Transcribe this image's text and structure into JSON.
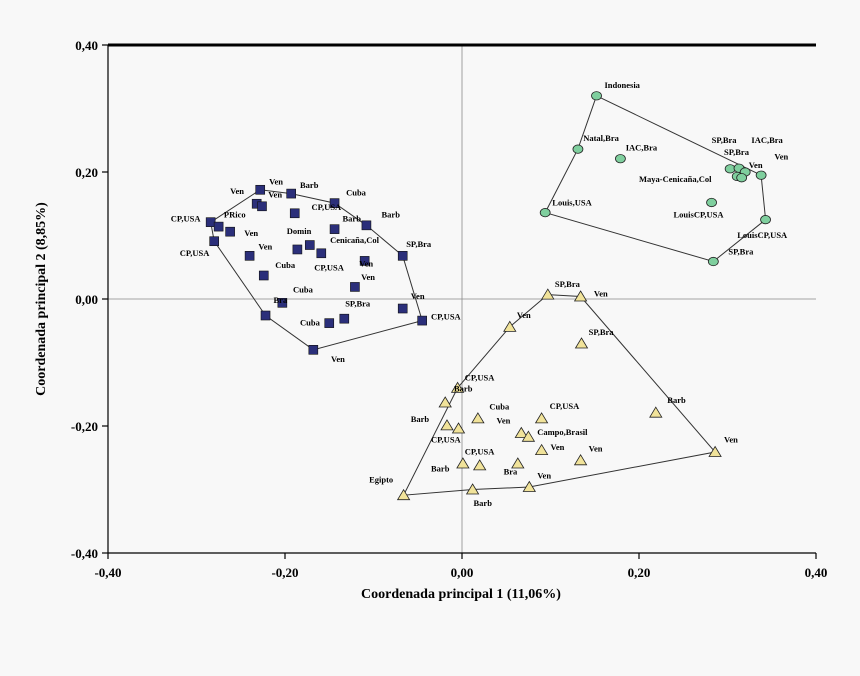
{
  "chart_data": {
    "type": "scatter",
    "xlabel": "Coordenada principal 1 (11,06%)",
    "ylabel": "Coordenada principal 2 (8,85%)",
    "xlim": [
      -0.4,
      0.4
    ],
    "ylim": [
      -0.4,
      0.4
    ],
    "xticks": [
      "-0,40",
      "-0,20",
      "0,00",
      "0,20",
      "0,40"
    ],
    "yticks": [
      "-0,40",
      "-0,20",
      "0,00",
      "0,20",
      "0,40"
    ],
    "reference_lines": {
      "x": 0,
      "y": 0
    },
    "colors": {
      "squares": "#2b2f7a",
      "circles": "#7fcf9e",
      "triangles": "#f1e39a",
      "hull": "#333333"
    },
    "groups": [
      {
        "marker": "square",
        "color": "#2b2f7a",
        "points": [
          {
            "x": -0.284,
            "y": 0.121
          },
          {
            "x": -0.275,
            "y": 0.114
          },
          {
            "x": -0.28,
            "y": 0.091
          },
          {
            "x": -0.262,
            "y": 0.106
          },
          {
            "x": -0.232,
            "y": 0.15
          },
          {
            "x": -0.226,
            "y": 0.146
          },
          {
            "x": -0.228,
            "y": 0.172
          },
          {
            "x": -0.193,
            "y": 0.166
          },
          {
            "x": -0.189,
            "y": 0.135
          },
          {
            "x": -0.144,
            "y": 0.151
          },
          {
            "x": -0.108,
            "y": 0.116
          },
          {
            "x": -0.144,
            "y": 0.11
          },
          {
            "x": -0.172,
            "y": 0.085
          },
          {
            "x": -0.186,
            "y": 0.078
          },
          {
            "x": -0.159,
            "y": 0.072
          },
          {
            "x": -0.24,
            "y": 0.068
          },
          {
            "x": -0.224,
            "y": 0.037
          },
          {
            "x": -0.11,
            "y": 0.06
          },
          {
            "x": -0.067,
            "y": 0.068
          },
          {
            "x": -0.121,
            "y": 0.019
          },
          {
            "x": -0.203,
            "y": -0.006
          },
          {
            "x": -0.222,
            "y": -0.026
          },
          {
            "x": -0.15,
            "y": -0.038
          },
          {
            "x": -0.133,
            "y": -0.031
          },
          {
            "x": -0.067,
            "y": -0.015
          },
          {
            "x": -0.045,
            "y": -0.034
          },
          {
            "x": -0.168,
            "y": -0.08
          }
        ],
        "labels": [
          {
            "text": "Ven",
            "x": -0.262,
            "y": 0.165
          },
          {
            "text": "Ven",
            "x": -0.218,
            "y": 0.18
          },
          {
            "text": "Ven",
            "x": -0.219,
            "y": 0.16
          },
          {
            "text": "Barb",
            "x": -0.183,
            "y": 0.175
          },
          {
            "text": "Cuba",
            "x": -0.131,
            "y": 0.163
          },
          {
            "text": "CP,USA",
            "x": -0.329,
            "y": 0.122
          },
          {
            "text": "PRico",
            "x": -0.269,
            "y": 0.128
          },
          {
            "text": "CP,USA",
            "x": -0.17,
            "y": 0.14
          },
          {
            "text": "Barb",
            "x": -0.091,
            "y": 0.128
          },
          {
            "text": "Barb",
            "x": -0.135,
            "y": 0.122
          },
          {
            "text": "Ven",
            "x": -0.246,
            "y": 0.099
          },
          {
            "text": "CP,USA",
            "x": -0.319,
            "y": 0.068
          },
          {
            "text": "Domin",
            "x": -0.198,
            "y": 0.102
          },
          {
            "text": "Ven",
            "x": -0.23,
            "y": 0.078
          },
          {
            "text": "Cenicaña,Col",
            "x": -0.149,
            "y": 0.088
          },
          {
            "text": "SP,Bra",
            "x": -0.063,
            "y": 0.082
          },
          {
            "text": "Cuba",
            "x": -0.211,
            "y": 0.049
          },
          {
            "text": "CP,USA",
            "x": -0.167,
            "y": 0.045
          },
          {
            "text": "Ven",
            "x": -0.116,
            "y": 0.051
          },
          {
            "text": "Ven",
            "x": -0.114,
            "y": 0.03
          },
          {
            "text": "Cuba",
            "x": -0.191,
            "y": 0.01
          },
          {
            "text": "Bra",
            "x": -0.213,
            "y": -0.006
          },
          {
            "text": "Cuba",
            "x": -0.183,
            "y": -0.042
          },
          {
            "text": "SP,Bra",
            "x": -0.132,
            "y": -0.012
          },
          {
            "text": "Ven",
            "x": -0.058,
            "y": 0.0
          },
          {
            "text": "CP,USA",
            "x": -0.035,
            "y": -0.032
          },
          {
            "text": "Ven",
            "x": -0.148,
            "y": -0.099
          }
        ],
        "hull": [
          [
            -0.284,
            0.121
          ],
          [
            -0.228,
            0.172
          ],
          [
            -0.193,
            0.166
          ],
          [
            -0.144,
            0.151
          ],
          [
            -0.108,
            0.116
          ],
          [
            -0.067,
            0.068
          ],
          [
            -0.045,
            -0.034
          ],
          [
            -0.168,
            -0.08
          ],
          [
            -0.222,
            -0.026
          ],
          [
            -0.28,
            0.091
          ]
        ]
      },
      {
        "marker": "circle",
        "color": "#7fcf9e",
        "points": [
          {
            "x": 0.152,
            "y": 0.32
          },
          {
            "x": 0.131,
            "y": 0.236
          },
          {
            "x": 0.179,
            "y": 0.221
          },
          {
            "x": 0.094,
            "y": 0.136
          },
          {
            "x": 0.303,
            "y": 0.205
          },
          {
            "x": 0.313,
            "y": 0.206
          },
          {
            "x": 0.32,
            "y": 0.2
          },
          {
            "x": 0.311,
            "y": 0.193
          },
          {
            "x": 0.316,
            "y": 0.191
          },
          {
            "x": 0.338,
            "y": 0.195
          },
          {
            "x": 0.282,
            "y": 0.152
          },
          {
            "x": 0.343,
            "y": 0.125
          },
          {
            "x": 0.284,
            "y": 0.059
          }
        ],
        "labels": [
          {
            "text": "Indonesia",
            "x": 0.161,
            "y": 0.332
          },
          {
            "text": "Natal,Bra",
            "x": 0.137,
            "y": 0.249
          },
          {
            "text": "IAC,Bra",
            "x": 0.185,
            "y": 0.234
          },
          {
            "text": "SP,Bra",
            "x": 0.282,
            "y": 0.246
          },
          {
            "text": "IAC,Bra",
            "x": 0.327,
            "y": 0.246
          },
          {
            "text": "SP,Bra",
            "x": 0.296,
            "y": 0.227
          },
          {
            "text": "Ven",
            "x": 0.353,
            "y": 0.22
          },
          {
            "text": "Ven",
            "x": 0.324,
            "y": 0.206
          },
          {
            "text": "Maya-Cenicaña,Col",
            "x": 0.2,
            "y": 0.184
          },
          {
            "text": "Louis,USA",
            "x": 0.102,
            "y": 0.147
          },
          {
            "text": "LouisCP,USA",
            "x": 0.239,
            "y": 0.128
          },
          {
            "text": "LouisCP,USA",
            "x": 0.311,
            "y": 0.096
          },
          {
            "text": "SP,Bra",
            "x": 0.301,
            "y": 0.07
          }
        ],
        "hull": [
          [
            0.152,
            0.32
          ],
          [
            0.338,
            0.195
          ],
          [
            0.343,
            0.125
          ],
          [
            0.284,
            0.059
          ],
          [
            0.094,
            0.136
          ],
          [
            0.131,
            0.236
          ]
        ]
      },
      {
        "marker": "triangle",
        "color": "#f1e39a",
        "points": [
          {
            "x": 0.097,
            "y": 0.007
          },
          {
            "x": 0.134,
            "y": 0.004
          },
          {
            "x": 0.054,
            "y": -0.044
          },
          {
            "x": 0.135,
            "y": -0.07
          },
          {
            "x": -0.005,
            "y": -0.14
          },
          {
            "x": -0.019,
            "y": -0.163
          },
          {
            "x": 0.018,
            "y": -0.188
          },
          {
            "x": 0.09,
            "y": -0.188
          },
          {
            "x": 0.219,
            "y": -0.179
          },
          {
            "x": -0.017,
            "y": -0.199
          },
          {
            "x": -0.004,
            "y": -0.204
          },
          {
            "x": 0.067,
            "y": -0.211
          },
          {
            "x": 0.075,
            "y": -0.217
          },
          {
            "x": 0.09,
            "y": -0.238
          },
          {
            "x": 0.134,
            "y": -0.254
          },
          {
            "x": 0.286,
            "y": -0.241
          },
          {
            "x": 0.001,
            "y": -0.259
          },
          {
            "x": 0.02,
            "y": -0.262
          },
          {
            "x": 0.063,
            "y": -0.259
          },
          {
            "x": 0.076,
            "y": -0.296
          },
          {
            "x": 0.012,
            "y": -0.3
          },
          {
            "x": -0.066,
            "y": -0.309
          }
        ],
        "labels": [
          {
            "text": "SP,Bra",
            "x": 0.105,
            "y": 0.019
          },
          {
            "text": "Ven",
            "x": 0.149,
            "y": 0.004
          },
          {
            "text": "Ven",
            "x": 0.062,
            "y": -0.03
          },
          {
            "text": "SP,Bra",
            "x": 0.143,
            "y": -0.057
          },
          {
            "text": "CP,USA",
            "x": 0.003,
            "y": -0.128
          },
          {
            "text": "Barb",
            "x": -0.009,
            "y": -0.146
          },
          {
            "text": "Cuba",
            "x": 0.031,
            "y": -0.174
          },
          {
            "text": "CP,USA",
            "x": 0.099,
            "y": -0.173
          },
          {
            "text": "Barb",
            "x": 0.232,
            "y": -0.164
          },
          {
            "text": "Barb",
            "x": -0.058,
            "y": -0.194
          },
          {
            "text": "Ven",
            "x": 0.039,
            "y": -0.196
          },
          {
            "text": "Campo,Brasil",
            "x": 0.085,
            "y": -0.214
          },
          {
            "text": "CP,USA",
            "x": -0.035,
            "y": -0.226
          },
          {
            "text": "Ven",
            "x": 0.1,
            "y": -0.238
          },
          {
            "text": "Ven",
            "x": 0.143,
            "y": -0.24
          },
          {
            "text": "Ven",
            "x": 0.296,
            "y": -0.226
          },
          {
            "text": "CP,USA",
            "x": 0.003,
            "y": -0.245
          },
          {
            "text": "Barb",
            "x": -0.035,
            "y": -0.272
          },
          {
            "text": "Bra",
            "x": 0.047,
            "y": -0.276
          },
          {
            "text": "Ven",
            "x": 0.085,
            "y": -0.283
          },
          {
            "text": "Egipto",
            "x": -0.105,
            "y": -0.289
          },
          {
            "text": "Barb",
            "x": 0.013,
            "y": -0.326
          }
        ],
        "hull": [
          [
            0.097,
            0.007
          ],
          [
            0.134,
            0.004
          ],
          [
            0.286,
            -0.241
          ],
          [
            0.076,
            -0.296
          ],
          [
            0.012,
            -0.3
          ],
          [
            -0.066,
            -0.309
          ],
          [
            -0.005,
            -0.14
          ],
          [
            0.054,
            -0.044
          ]
        ]
      }
    ]
  }
}
